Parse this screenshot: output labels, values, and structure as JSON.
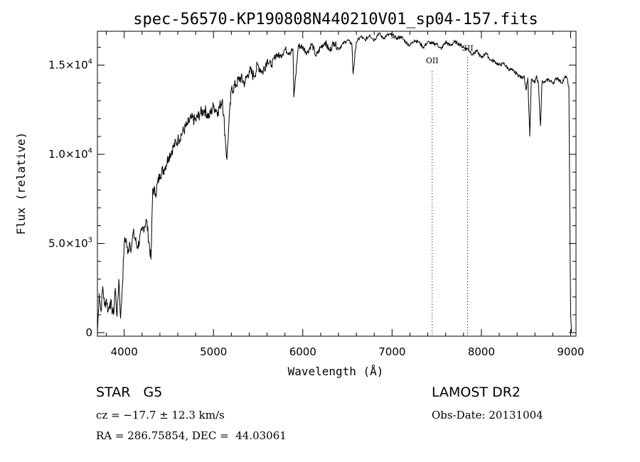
{
  "chart_data": {
    "type": "line",
    "title": "spec-56570-KP190808N440210V01_sp04-157.fits",
    "xlabel": "Wavelength (Å)",
    "ylabel": "Flux (relative)",
    "xlim": [
      3700,
      9060
    ],
    "ylim": [
      -200,
      16900
    ],
    "x_ticks": [
      {
        "value": 4000,
        "label": "4000"
      },
      {
        "value": 5000,
        "label": "5000"
      },
      {
        "value": 6000,
        "label": "6000"
      },
      {
        "value": 7000,
        "label": "7000"
      },
      {
        "value": 8000,
        "label": "8000"
      },
      {
        "value": 9000,
        "label": "9000"
      }
    ],
    "y_ticks": [
      {
        "value": 0,
        "label": "0",
        "mantissa": "",
        "exponent": ""
      },
      {
        "value": 5000,
        "label": "",
        "mantissa": "5.0×10",
        "exponent": "3"
      },
      {
        "value": 10000,
        "label": "",
        "mantissa": "1.0×10",
        "exponent": "4"
      },
      {
        "value": 15000,
        "label": "",
        "mantissa": "1.5×10",
        "exponent": "4"
      }
    ],
    "series": [
      {
        "x": [
          3700,
          3720,
          3740,
          3760,
          3780,
          3800,
          3820,
          3840,
          3860,
          3880,
          3900,
          3920,
          3940,
          3960,
          3980,
          4000,
          4020,
          4040,
          4060,
          4080,
          4100,
          4150,
          4200,
          4250,
          4300,
          4320,
          4350,
          4400,
          4450,
          4500,
          4550,
          4600,
          4650,
          4700,
          4750,
          4800,
          4850,
          4900,
          4950,
          5000,
          5050,
          5100,
          5150,
          5170,
          5200,
          5250,
          5300,
          5350,
          5400,
          5450,
          5500,
          5550,
          5600,
          5650,
          5700,
          5750,
          5800,
          5850,
          5890,
          5900,
          5950,
          6000,
          6050,
          6100,
          6150,
          6200,
          6250,
          6300,
          6350,
          6400,
          6450,
          6500,
          6550,
          6563,
          6600,
          6650,
          6700,
          6750,
          6800,
          6850,
          6900,
          6950,
          7000,
          7050,
          7100,
          7150,
          7200,
          7250,
          7300,
          7350,
          7400,
          7450,
          7500,
          7550,
          7600,
          7650,
          7700,
          7750,
          7800,
          7850,
          7900,
          7950,
          8000,
          8050,
          8100,
          8150,
          8200,
          8250,
          8300,
          8350,
          8400,
          8450,
          8480,
          8500,
          8520,
          8542,
          8560,
          8580,
          8600,
          8620,
          8640,
          8662,
          8680,
          8700,
          8750,
          8800,
          8850,
          8900,
          8950,
          8980,
          9000,
          9010
        ],
        "y": [
          0,
          2200,
          1200,
          2600,
          1500,
          1900,
          1200,
          1700,
          1400,
          1000,
          2500,
          900,
          3000,
          800,
          2700,
          5000,
          5300,
          4400,
          5100,
          4700,
          5600,
          4800,
          5700,
          6300,
          4100,
          8100,
          7800,
          8900,
          9200,
          9900,
          10400,
          10800,
          11200,
          11600,
          12000,
          11900,
          12300,
          12500,
          12100,
          12700,
          12400,
          13100,
          9700,
          11500,
          13600,
          13900,
          14300,
          14000,
          14700,
          14400,
          15000,
          14600,
          15300,
          15000,
          15600,
          15500,
          15900,
          15700,
          15900,
          13200,
          16100,
          16000,
          15700,
          16200,
          15500,
          16000,
          16300,
          15800,
          16300,
          15900,
          16200,
          16400,
          16200,
          14500,
          16300,
          16600,
          16400,
          16700,
          16400,
          16800,
          16500,
          16700,
          16700,
          16500,
          16600,
          16300,
          16100,
          16400,
          16300,
          16000,
          16300,
          16200,
          16200,
          15900,
          16300,
          16100,
          16300,
          16200,
          16000,
          15900,
          15600,
          15800,
          15400,
          15700,
          15300,
          15200,
          15000,
          15100,
          14800,
          14700,
          14500,
          14300,
          14400,
          13600,
          14300,
          11000,
          14200,
          14100,
          14000,
          14400,
          13900,
          11600,
          14100,
          14000,
          14200,
          14000,
          14300,
          14000,
          14400,
          13800,
          1000,
          0
        ]
      }
    ],
    "markers": [
      {
        "x": 7449,
        "label": "OII",
        "label_y": 15100
      },
      {
        "x": 7846,
        "label": "SII",
        "label_y": 15800
      }
    ]
  },
  "info": {
    "classification": "STAR   G5",
    "redshift": "cz = −17.7 ± 12.3 km/s",
    "coords": "RA = 286.75854, DEC =  44.03061",
    "survey": "LAMOST DR2",
    "obs_date": "Obs-Date: 20131004"
  }
}
